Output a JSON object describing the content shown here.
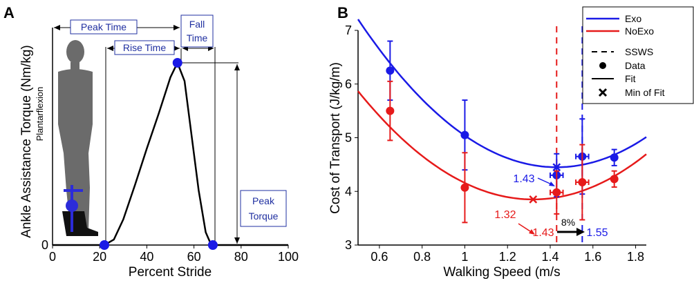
{
  "panel_a": {
    "letter": "A",
    "y_label": "Ankle Assistance Torque (Nm/kg)",
    "side_label": "Plantarflexion",
    "x_label": "Percent Stride",
    "x_ticks": [
      "0",
      "20",
      "40",
      "60",
      "80",
      "100"
    ],
    "y_zero_label": "0",
    "box_labels": {
      "peak_time": "Peak Time",
      "rise_time": "Rise Time",
      "fall_time_1": "Fall",
      "fall_time_2": "Time",
      "peak_torque_1": "Peak",
      "peak_torque_2": "Torque"
    }
  },
  "panel_b": {
    "letter": "B",
    "y_label": "Cost of Transport (J/kg/m)",
    "x_label": "Walking Speed (m/s",
    "x_ticks": [
      "0.6",
      "0.8",
      "1",
      "1.2",
      "1.4",
      "1.6",
      "1.8"
    ],
    "y_ticks": [
      "3",
      "4",
      "5",
      "6",
      "7"
    ],
    "annotations": {
      "exo_min": "1.43",
      "noexo_min": "1.32",
      "noexo_ssws": "1.43",
      "exo_ssws": "1.55",
      "improvement": "8%"
    },
    "legend": {
      "exo": "Exo",
      "noexo": "NoExo",
      "ssws": "SSWS",
      "data": "Data",
      "fit": "Fit",
      "min": "Min of Fit"
    }
  },
  "colors": {
    "exo": "#1a1ae6",
    "noexo": "#e61a1a",
    "marker": "#1a1ae6",
    "figure": "#6b6b6b"
  },
  "chart_data": [
    {
      "type": "line",
      "title": "",
      "xlabel": "Percent Stride",
      "ylabel": "Ankle Assistance Torque (Nm/kg)",
      "xlim": [
        0,
        100
      ],
      "series": [
        {
          "x": [
            0,
            10,
            20,
            22,
            26,
            30,
            35,
            40,
            45,
            50,
            53,
            56,
            59,
            62,
            65,
            67,
            68,
            70,
            75,
            80,
            90,
            100
          ],
          "y": [
            0,
            0,
            0,
            0,
            0.03,
            0.14,
            0.33,
            0.53,
            0.72,
            0.92,
            1.0,
            0.9,
            0.6,
            0.3,
            0.07,
            0.01,
            0,
            0,
            0,
            0,
            0,
            0
          ]
        }
      ],
      "markers": [
        {
          "x": 22,
          "y": 0
        },
        {
          "x": 53,
          "y": 1.0
        },
        {
          "x": 68,
          "y": 0
        }
      ]
    },
    {
      "type": "scatter",
      "title": "",
      "xlabel": "Walking Speed (m/s",
      "ylabel": "Cost of Transport (J/kg/m)",
      "xlim": [
        0.5,
        1.85
      ],
      "ylim": [
        3,
        7
      ],
      "series": [
        {
          "name": "Exo",
          "x": [
            0.65,
            1.0,
            1.43,
            1.55,
            1.7
          ],
          "y": [
            6.25,
            5.05,
            4.3,
            4.65,
            4.63
          ],
          "y_err": [
            0.55,
            0.65,
            0.4,
            0.7,
            0.15
          ],
          "x_err": [
            0,
            0,
            0.03,
            0.03,
            0
          ],
          "fit": {
            "a": 3.186,
            "min_x": 1.43,
            "min_y": 4.45
          }
        },
        {
          "name": "NoExo",
          "x": [
            0.65,
            1.0,
            1.43,
            1.55,
            1.7
          ],
          "y": [
            5.5,
            4.07,
            3.98,
            4.17,
            4.23
          ],
          "y_err": [
            0.55,
            0.65,
            0.4,
            0.7,
            0.15
          ],
          "x_err": [
            0,
            0,
            0.03,
            0.03,
            0
          ],
          "fit": {
            "a": 3.0,
            "min_x": 1.32,
            "min_y": 3.85
          }
        }
      ],
      "ssws": {
        "Exo": 1.55,
        "NoExo": 1.43
      }
    }
  ]
}
